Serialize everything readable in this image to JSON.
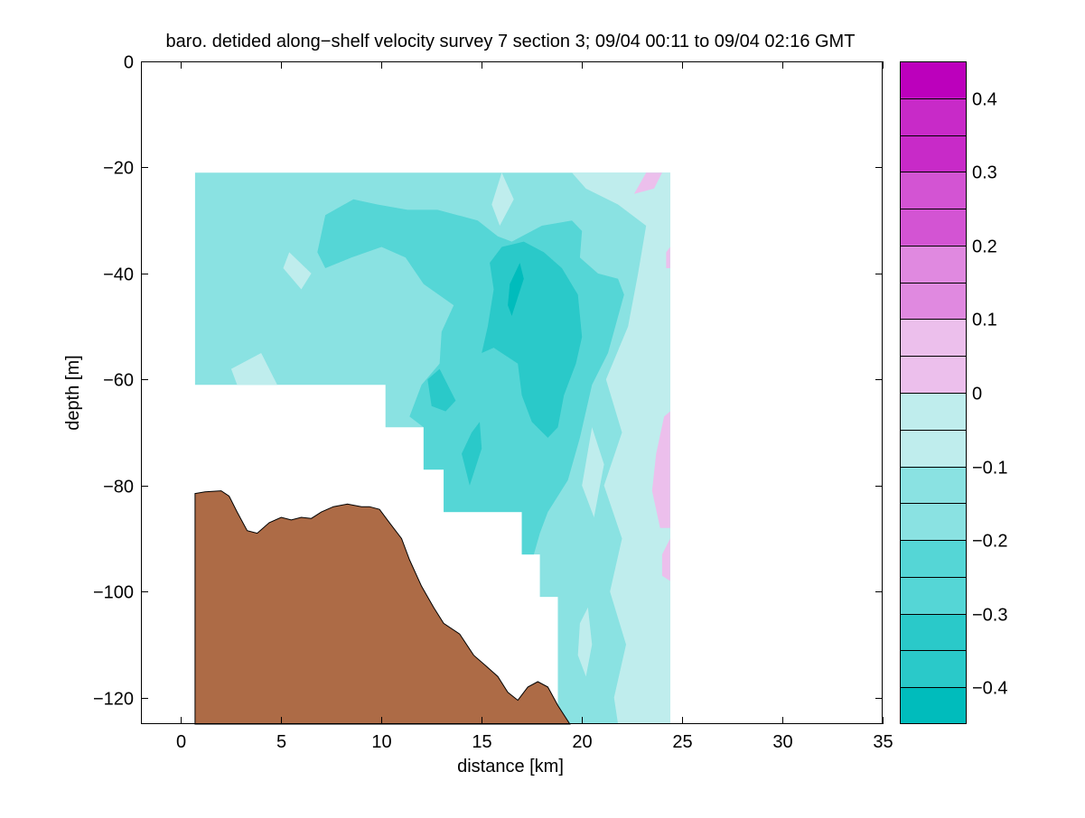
{
  "chart_data": {
    "type": "heatmap",
    "title": "baro. detided along−shelf velocity survey 7 section 3; 09/04 00:11 to 09/04 02:16 GMT",
    "xlabel": "distance [km]",
    "ylabel": "depth [m]",
    "xlim": [
      -2,
      35
    ],
    "ylim": [
      -125,
      0
    ],
    "x_ticks": [
      0,
      5,
      10,
      15,
      20,
      25,
      30,
      35
    ],
    "x_tick_labels": [
      "0",
      "5",
      "10",
      "15",
      "20",
      "25",
      "30",
      "35"
    ],
    "y_ticks": [
      0,
      -20,
      -40,
      -60,
      -80,
      -100,
      -120
    ],
    "y_tick_labels": [
      "0",
      "−20",
      "−40",
      "−60",
      "−80",
      "−100",
      "−120"
    ],
    "colorbar": {
      "levels": [
        -0.45,
        -0.4,
        -0.35,
        -0.3,
        -0.25,
        -0.2,
        -0.15,
        -0.1,
        -0.05,
        0,
        0.05,
        0.1,
        0.15,
        0.2,
        0.25,
        0.3,
        0.35,
        0.4,
        0.45
      ],
      "bands": [
        {
          "from": -0.45,
          "to": -0.4,
          "color": "#00bcbc"
        },
        {
          "from": -0.4,
          "to": -0.3,
          "color": "#2ac9c9"
        },
        {
          "from": -0.3,
          "to": -0.2,
          "color": "#55d6d6"
        },
        {
          "from": -0.2,
          "to": -0.1,
          "color": "#8ae2e2"
        },
        {
          "from": -0.1,
          "to": 0.0,
          "color": "#bfeded"
        },
        {
          "from": 0.0,
          "to": 0.1,
          "color": "#ecbfec"
        },
        {
          "from": 0.1,
          "to": 0.2,
          "color": "#e089e0"
        },
        {
          "from": 0.2,
          "to": 0.3,
          "color": "#d354d3"
        },
        {
          "from": 0.3,
          "to": 0.4,
          "color": "#c82ac8"
        },
        {
          "from": 0.4,
          "to": 0.45,
          "color": "#bc00bc"
        }
      ],
      "ticks": [
        0.4,
        0.3,
        0.2,
        0.1,
        0,
        -0.1,
        -0.2,
        -0.3,
        -0.4
      ],
      "tick_labels": [
        "0.4",
        "0.3",
        "0.2",
        "0.1",
        "0",
        "−0.1",
        "−0.2",
        "−0.3",
        "−0.4"
      ]
    },
    "data_extent": {
      "x_range_km": [
        0.7,
        24.4
      ],
      "top_depth_m": -21,
      "bottom_edge_steps": [
        {
          "x": 0.7,
          "depth": -61
        },
        {
          "x": 10.2,
          "depth": -69
        },
        {
          "x": 12.1,
          "depth": -77
        },
        {
          "x": 13.1,
          "depth": -85
        },
        {
          "x": 17.0,
          "depth": -93
        },
        {
          "x": 17.9,
          "depth": -101
        },
        {
          "x": 18.8,
          "depth": -125
        },
        {
          "x": 24.4,
          "depth": -125
        }
      ]
    },
    "regions": [
      {
        "level": -0.15,
        "points": [
          [
            0.7,
            -21
          ],
          [
            24.4,
            -21
          ],
          [
            24.4,
            -125
          ],
          [
            18.8,
            -125
          ],
          [
            18.8,
            -101
          ],
          [
            17.9,
            -101
          ],
          [
            17.9,
            -93
          ],
          [
            17.0,
            -93
          ],
          [
            17.0,
            -85
          ],
          [
            13.1,
            -85
          ],
          [
            13.1,
            -77
          ],
          [
            12.1,
            -77
          ],
          [
            12.1,
            -69
          ],
          [
            10.2,
            -69
          ],
          [
            10.2,
            -61
          ],
          [
            0.7,
            -61
          ]
        ]
      },
      {
        "level": -0.05,
        "points": [
          [
            19.5,
            -21
          ],
          [
            24.4,
            -21
          ],
          [
            24.4,
            -125
          ],
          [
            21.8,
            -125
          ],
          [
            21.6,
            -120
          ],
          [
            22.2,
            -110
          ],
          [
            21.4,
            -100
          ],
          [
            22.0,
            -90
          ],
          [
            21.1,
            -80
          ],
          [
            22.0,
            -70
          ],
          [
            21.2,
            -60
          ],
          [
            22.3,
            -50
          ],
          [
            22.8,
            -40
          ],
          [
            23.2,
            -31
          ],
          [
            21.8,
            -27
          ],
          [
            20.2,
            -24
          ]
        ]
      },
      {
        "level": -0.05,
        "points": [
          [
            20.5,
            -69
          ],
          [
            21.1,
            -76
          ],
          [
            20.6,
            -86
          ],
          [
            20.0,
            -80
          ]
        ]
      },
      {
        "level": -0.05,
        "points": [
          [
            20.3,
            -103
          ],
          [
            20.5,
            -110
          ],
          [
            20.2,
            -116
          ],
          [
            19.8,
            -112
          ],
          [
            19.9,
            -106
          ]
        ]
      },
      {
        "level": -0.05,
        "points": [
          [
            16.0,
            -21
          ],
          [
            16.6,
            -26
          ],
          [
            15.9,
            -31
          ],
          [
            15.5,
            -27
          ]
        ]
      },
      {
        "level": -0.05,
        "points": [
          [
            5.4,
            -36
          ],
          [
            6.5,
            -40
          ],
          [
            6.0,
            -43
          ],
          [
            5.1,
            -39
          ]
        ]
      },
      {
        "level": -0.05,
        "points": [
          [
            2.5,
            -58
          ],
          [
            4.0,
            -55
          ],
          [
            4.8,
            -61
          ],
          [
            2.8,
            -61
          ]
        ]
      },
      {
        "level": 0.05,
        "points": [
          [
            23.2,
            -21
          ],
          [
            24.0,
            -21
          ],
          [
            23.6,
            -24
          ],
          [
            22.6,
            -25
          ]
        ]
      },
      {
        "level": 0.05,
        "points": [
          [
            24.1,
            -67
          ],
          [
            24.4,
            -66
          ],
          [
            24.4,
            -88
          ],
          [
            23.9,
            -88
          ],
          [
            23.5,
            -81
          ],
          [
            23.7,
            -74
          ]
        ]
      },
      {
        "level": 0.05,
        "points": [
          [
            24.0,
            -93
          ],
          [
            24.4,
            -90
          ],
          [
            24.4,
            -98
          ],
          [
            24.0,
            -97
          ]
        ]
      },
      {
        "level": 0.05,
        "points": [
          [
            24.2,
            -36
          ],
          [
            24.4,
            -35
          ],
          [
            24.4,
            -39
          ],
          [
            24.2,
            -39
          ]
        ]
      },
      {
        "level": -0.25,
        "points": [
          [
            7.2,
            -29
          ],
          [
            8.6,
            -26
          ],
          [
            9.8,
            -27
          ],
          [
            11.3,
            -28
          ],
          [
            12.8,
            -28
          ],
          [
            14.8,
            -30
          ],
          [
            15.8,
            -33
          ],
          [
            16.5,
            -34
          ],
          [
            18.0,
            -31
          ],
          [
            19.5,
            -30
          ],
          [
            20.0,
            -32
          ],
          [
            19.9,
            -37
          ],
          [
            20.8,
            -40
          ],
          [
            21.8,
            -41
          ],
          [
            22.1,
            -44
          ],
          [
            21.3,
            -55
          ],
          [
            20.5,
            -61
          ],
          [
            19.9,
            -71
          ],
          [
            19.3,
            -79
          ],
          [
            18.3,
            -85
          ],
          [
            17.9,
            -89
          ],
          [
            17.6,
            -93
          ],
          [
            17.0,
            -93
          ],
          [
            17.0,
            -85
          ],
          [
            13.1,
            -85
          ],
          [
            13.1,
            -77
          ],
          [
            12.1,
            -77
          ],
          [
            12.1,
            -69
          ],
          [
            11.4,
            -67
          ],
          [
            12.0,
            -61
          ],
          [
            12.9,
            -57
          ],
          [
            13.0,
            -51
          ],
          [
            13.6,
            -46
          ],
          [
            12.1,
            -42
          ],
          [
            11.2,
            -37
          ],
          [
            10.0,
            -35
          ],
          [
            8.5,
            -37
          ],
          [
            7.2,
            -39
          ],
          [
            6.8,
            -36
          ]
        ]
      },
      {
        "level": -0.35,
        "points": [
          [
            15.4,
            -38
          ],
          [
            16.0,
            -35
          ],
          [
            17.1,
            -34
          ],
          [
            18.1,
            -36
          ],
          [
            19.0,
            -39
          ],
          [
            19.8,
            -44
          ],
          [
            20.0,
            -52
          ],
          [
            19.7,
            -57
          ],
          [
            19.1,
            -63
          ],
          [
            18.8,
            -69
          ],
          [
            18.3,
            -71
          ],
          [
            17.5,
            -68
          ],
          [
            17.0,
            -63
          ],
          [
            16.8,
            -57
          ],
          [
            15.6,
            -54
          ],
          [
            15.0,
            -55
          ],
          [
            15.3,
            -50
          ],
          [
            15.6,
            -43
          ]
        ]
      },
      {
        "level": -0.35,
        "points": [
          [
            12.3,
            -60
          ],
          [
            12.9,
            -58
          ],
          [
            13.7,
            -64
          ],
          [
            13.2,
            -66
          ],
          [
            12.5,
            -65
          ]
        ]
      },
      {
        "level": -0.35,
        "points": [
          [
            14.5,
            -70
          ],
          [
            14.9,
            -68
          ],
          [
            15.0,
            -73
          ],
          [
            14.4,
            -80
          ],
          [
            14.0,
            -74
          ]
        ]
      },
      {
        "level": -0.45,
        "points": [
          [
            16.4,
            -42
          ],
          [
            16.9,
            -38
          ],
          [
            17.1,
            -41
          ],
          [
            16.5,
            -48
          ],
          [
            16.3,
            -46
          ]
        ]
      }
    ],
    "bathymetry": {
      "color": "#ad6b46",
      "outline": [
        [
          0.7,
          -81.5
        ],
        [
          1.2,
          -81.2
        ],
        [
          2.0,
          -81
        ],
        [
          2.4,
          -82
        ],
        [
          2.8,
          -85
        ],
        [
          3.3,
          -88.5
        ],
        [
          3.8,
          -89
        ],
        [
          4.4,
          -87
        ],
        [
          5.0,
          -86
        ],
        [
          5.5,
          -86.5
        ],
        [
          6.0,
          -86
        ],
        [
          6.5,
          -86.2
        ],
        [
          7.0,
          -85
        ],
        [
          7.6,
          -84
        ],
        [
          8.3,
          -83.5
        ],
        [
          9.0,
          -84
        ],
        [
          9.4,
          -84
        ],
        [
          9.9,
          -84.5
        ],
        [
          10.4,
          -87
        ],
        [
          11.0,
          -90
        ],
        [
          11.4,
          -94
        ],
        [
          12.0,
          -99
        ],
        [
          12.6,
          -103
        ],
        [
          13.1,
          -106
        ],
        [
          13.9,
          -108
        ],
        [
          14.6,
          -112
        ],
        [
          15.2,
          -114
        ],
        [
          15.8,
          -116
        ],
        [
          16.3,
          -119
        ],
        [
          16.8,
          -120.5
        ],
        [
          17.3,
          -118
        ],
        [
          17.8,
          -117
        ],
        [
          18.3,
          -118
        ],
        [
          18.8,
          -121.5
        ],
        [
          19.4,
          -125
        ]
      ]
    }
  }
}
